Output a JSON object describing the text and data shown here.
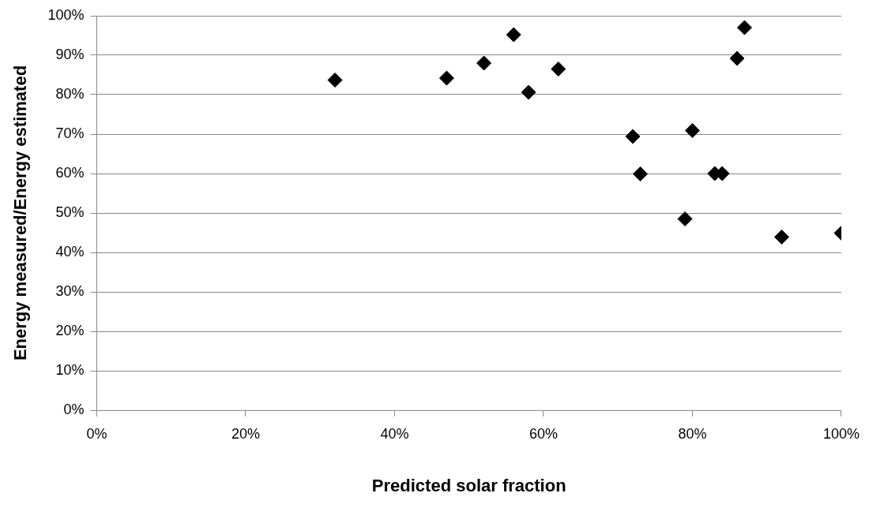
{
  "chart_data": {
    "type": "scatter",
    "xlabel": "Predicted solar fraction",
    "ylabel": "Energy measured/Energy estimated",
    "x": [
      32,
      47,
      52,
      56,
      58,
      62,
      72,
      73,
      79,
      80,
      83,
      84,
      86,
      87,
      92,
      100
    ],
    "series": [
      {
        "color": "#000000",
        "values": [
          83.7,
          84.2,
          88,
          95.2,
          80.6,
          86.5,
          69.4,
          59.9,
          48.5,
          70.9,
          60,
          60,
          89.2,
          97,
          43.9,
          44.9
        ]
      }
    ],
    "xlim": [
      0,
      100
    ],
    "xticks": [
      {
        "value": 0,
        "label": "0%"
      },
      {
        "value": 20,
        "label": "20%"
      },
      {
        "value": 40,
        "label": "40%"
      },
      {
        "value": 60,
        "label": "60%"
      },
      {
        "value": 80,
        "label": "80%"
      },
      {
        "value": 100,
        "label": "100%"
      }
    ],
    "ylim": [
      0,
      100
    ],
    "yticks": [
      {
        "value": 0,
        "label": "0%"
      },
      {
        "value": 10,
        "label": "10%"
      },
      {
        "value": 20,
        "label": "20%"
      },
      {
        "value": 30,
        "label": "30%"
      },
      {
        "value": 40,
        "label": "40%"
      },
      {
        "value": 50,
        "label": "50%"
      },
      {
        "value": 60,
        "label": "60%"
      },
      {
        "value": 70,
        "label": "70%"
      },
      {
        "value": 80,
        "label": "80%"
      },
      {
        "value": 90,
        "label": "90%"
      },
      {
        "value": 100,
        "label": "100%"
      }
    ],
    "grid": "y",
    "legend": false,
    "marker": "diamond"
  }
}
